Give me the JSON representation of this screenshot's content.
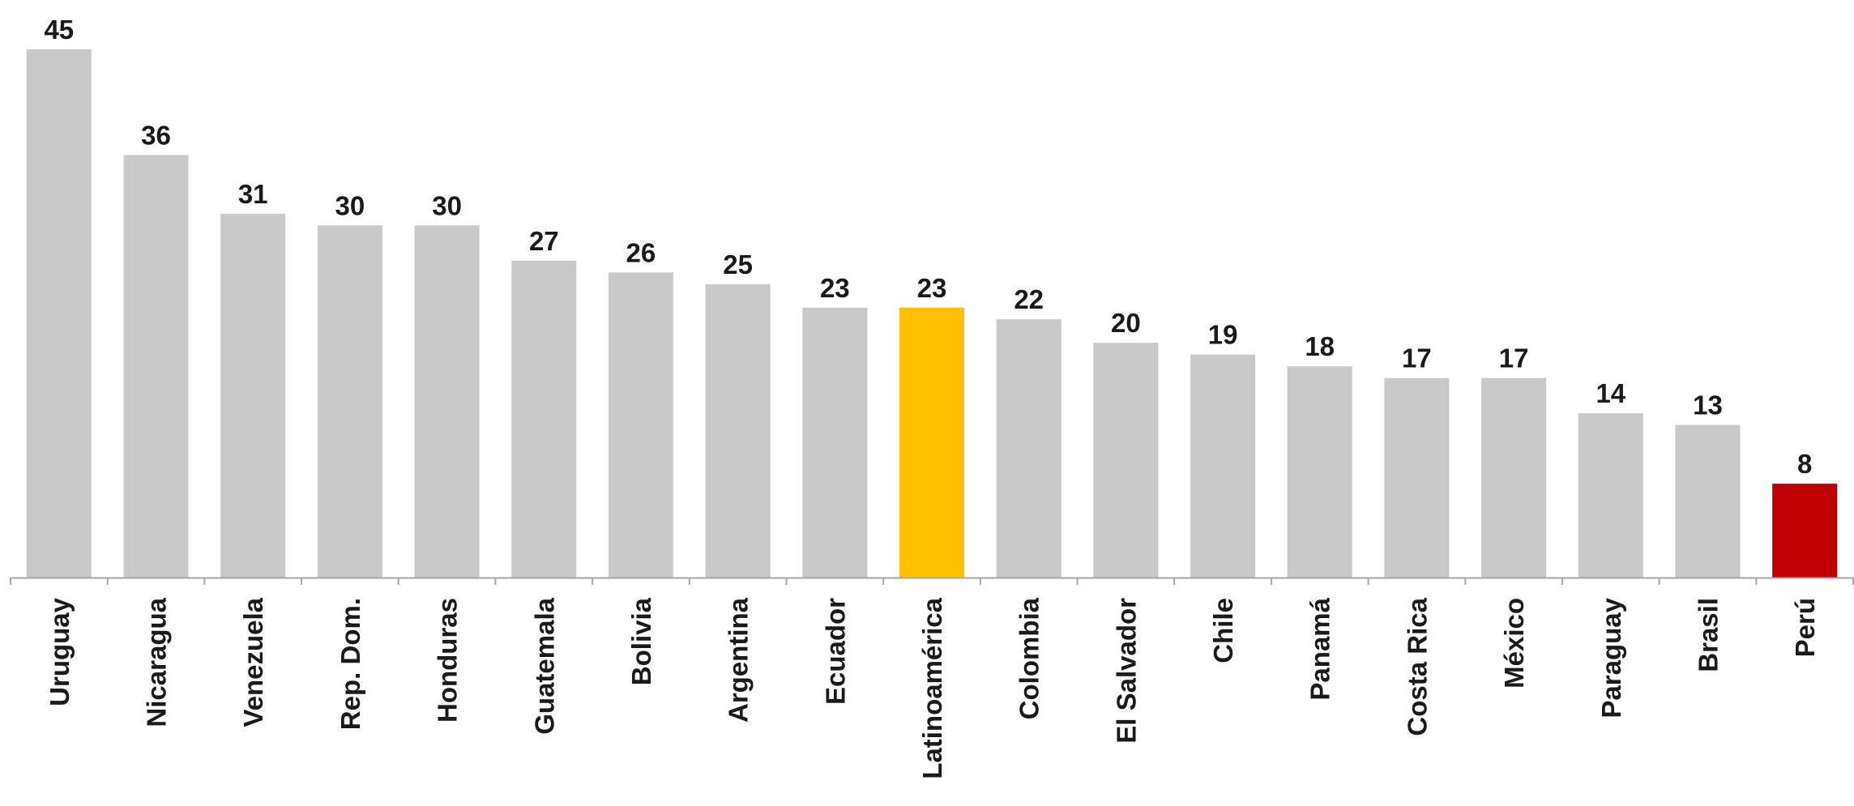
{
  "chart_data": {
    "type": "bar",
    "title": "",
    "xlabel": "",
    "ylabel": "",
    "ylim": [
      0,
      45
    ],
    "grid": false,
    "legend": "none",
    "categories": [
      "Uruguay",
      "Nicaragua",
      "Venezuela",
      "Rep. Dom.",
      "Honduras",
      "Guatemala",
      "Bolivia",
      "Argentina",
      "Ecuador",
      "Latinoamérica",
      "Colombia",
      "El Salvador",
      "Chile",
      "Panamá",
      "Costa Rica",
      "México",
      "Paraguay",
      "Brasil",
      "Perú"
    ],
    "values": [
      45,
      36,
      31,
      30,
      30,
      27,
      26,
      25,
      23,
      23,
      22,
      20,
      19,
      18,
      17,
      17,
      14,
      13,
      8
    ],
    "value_labels": [
      "45",
      "36",
      "31",
      "30",
      "30",
      "27",
      "26",
      "25",
      "23",
      "23",
      "22",
      "20",
      "19",
      "18",
      "17",
      "17",
      "14",
      "13",
      "8"
    ],
    "colors": {
      "default": "#c8c8c8",
      "highlight": {
        "Latinoamérica": "#ffc000",
        "Perú": "#c00000"
      },
      "axis": "#a6a6a6"
    }
  }
}
